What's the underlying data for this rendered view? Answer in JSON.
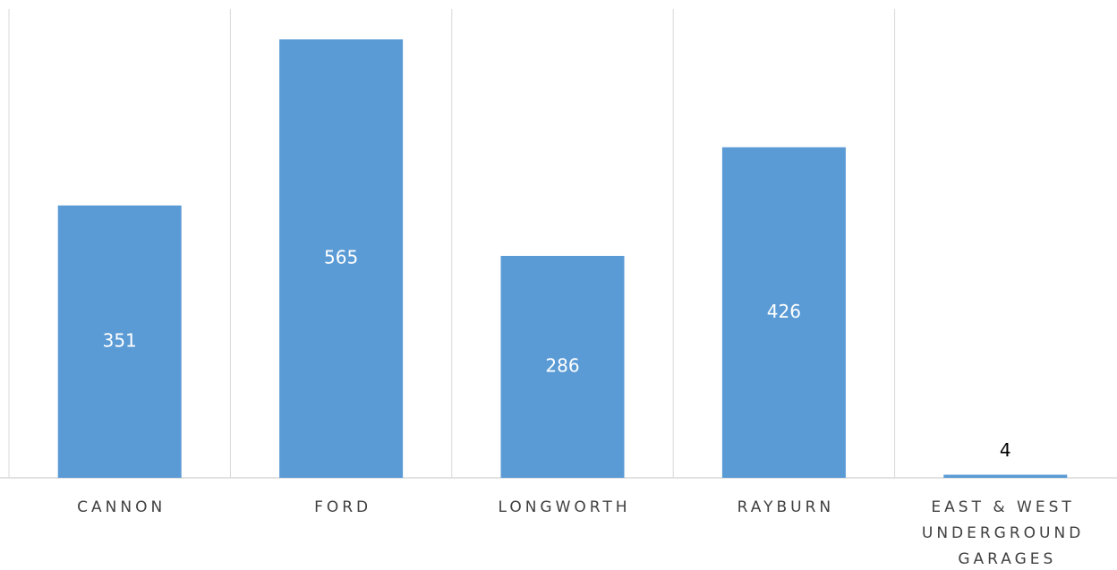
{
  "chart_data": {
    "type": "bar",
    "categories": [
      "CANNON",
      "FORD",
      "LONGWORTH",
      "RAYBURN",
      "EAST & WEST UNDERGROUND GARAGES"
    ],
    "values": [
      351,
      565,
      286,
      426,
      4
    ],
    "color": "#5b9bd5"
  }
}
